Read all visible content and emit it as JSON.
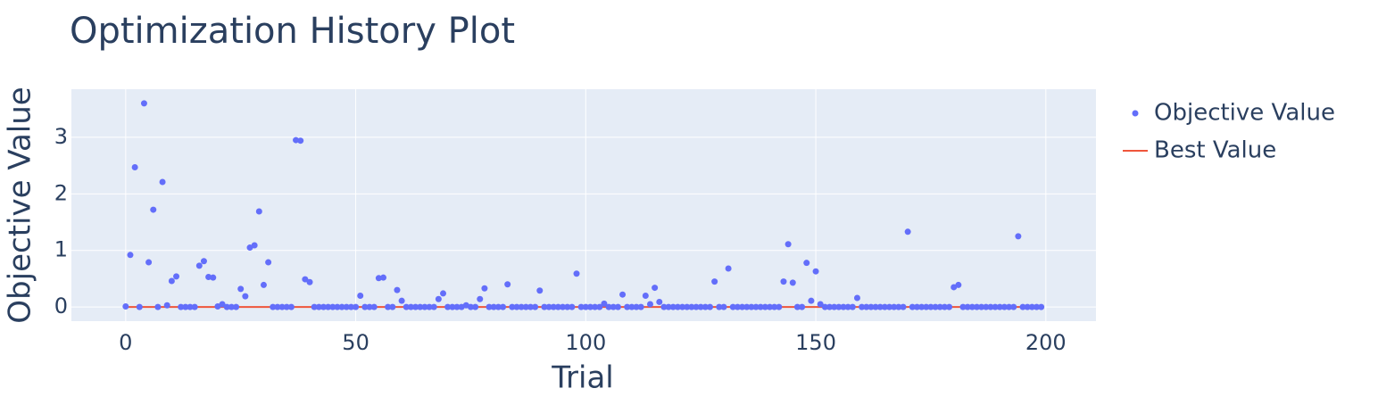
{
  "chart_data": {
    "type": "scatter",
    "title": "Optimization History Plot",
    "x_label": "Trial",
    "y_label": "Objective Value",
    "xlim": [
      -11.8,
      210.9
    ],
    "ylim": [
      -0.25,
      3.85
    ],
    "xticks": [
      0,
      50,
      100,
      150,
      200
    ],
    "yticks": [
      0,
      1,
      2,
      3
    ],
    "grid": true,
    "legend": "right",
    "series": [
      {
        "name": "Objective Value",
        "color": "#636efa",
        "mode": "markers",
        "x": [
          0,
          1,
          2,
          3,
          4,
          5,
          6,
          7,
          8,
          9,
          10,
          11,
          12,
          13,
          14,
          15,
          16,
          17,
          18,
          19,
          20,
          21,
          22,
          23,
          24,
          25,
          26,
          27,
          28,
          29,
          30,
          31,
          32,
          33,
          34,
          35,
          36,
          37,
          38,
          39,
          40,
          41,
          42,
          43,
          44,
          45,
          46,
          47,
          48,
          49,
          50,
          51,
          52,
          53,
          54,
          55,
          56,
          57,
          58,
          59,
          60,
          61,
          62,
          63,
          64,
          65,
          66,
          67,
          68,
          69,
          70,
          71,
          72,
          73,
          74,
          75,
          76,
          77,
          78,
          79,
          80,
          81,
          82,
          83,
          84,
          85,
          86,
          87,
          88,
          89,
          90,
          91,
          92,
          93,
          94,
          95,
          96,
          97,
          98,
          99,
          100,
          101,
          102,
          103,
          104,
          105,
          106,
          107,
          108,
          109,
          110,
          111,
          112,
          113,
          114,
          115,
          116,
          117,
          118,
          119,
          120,
          121,
          122,
          123,
          124,
          125,
          126,
          127,
          128,
          129,
          130,
          131,
          132,
          133,
          134,
          135,
          136,
          137,
          138,
          139,
          140,
          141,
          142,
          143,
          144,
          145,
          146,
          147,
          148,
          149,
          150,
          151,
          152,
          153,
          154,
          155,
          156,
          157,
          158,
          159,
          160,
          161,
          162,
          163,
          164,
          165,
          166,
          167,
          168,
          169,
          170,
          171,
          172,
          173,
          174,
          175,
          176,
          177,
          178,
          179,
          180,
          181,
          182,
          183,
          184,
          185,
          186,
          187,
          188,
          189,
          190,
          191,
          192,
          193,
          194,
          195,
          196,
          197,
          198,
          199
        ],
        "values": [
          0.01,
          0.92,
          2.47,
          0,
          3.6,
          0.79,
          1.72,
          0,
          2.21,
          0.03,
          0.46,
          0.54,
          0,
          0,
          0,
          0,
          0.73,
          0.81,
          0.53,
          0.52,
          0.01,
          0.05,
          0,
          0,
          0,
          0.32,
          0.19,
          1.05,
          1.09,
          1.69,
          0.39,
          0.79,
          0,
          0,
          0,
          0,
          0,
          2.95,
          2.94,
          0.49,
          0.44,
          0,
          0,
          0,
          0,
          0,
          0,
          0,
          0,
          0,
          0,
          0.2,
          0,
          0,
          0,
          0.51,
          0.52,
          0,
          0,
          0.3,
          0.11,
          0,
          0,
          0,
          0,
          0,
          0,
          0,
          0.14,
          0.24,
          0,
          0,
          0,
          0,
          0.03,
          0,
          0,
          0.14,
          0.33,
          0,
          0,
          0,
          0,
          0.4,
          0,
          0,
          0,
          0,
          0,
          0,
          0.29,
          0,
          0,
          0,
          0,
          0,
          0,
          0,
          0.59,
          0,
          0,
          0,
          0,
          0,
          0.06,
          0,
          0,
          0,
          0.22,
          0,
          0,
          0,
          0,
          0.2,
          0.05,
          0.34,
          0.09,
          0,
          0,
          0,
          0,
          0,
          0,
          0,
          0,
          0,
          0,
          0,
          0.45,
          0,
          0,
          0.68,
          0,
          0,
          0,
          0,
          0,
          0,
          0,
          0,
          0,
          0,
          0,
          0.45,
          1.11,
          0.43,
          0,
          0,
          0.78,
          0.11,
          0.63,
          0.05,
          0,
          0,
          0,
          0,
          0,
          0,
          0,
          0.16,
          0,
          0,
          0,
          0,
          0,
          0,
          0,
          0,
          0,
          0,
          1.33,
          0,
          0,
          0,
          0,
          0,
          0,
          0,
          0,
          0,
          0.35,
          0.39,
          0,
          0,
          0,
          0,
          0,
          0,
          0,
          0,
          0,
          0,
          0,
          0,
          1.25,
          0,
          0,
          0,
          0,
          0
        ]
      },
      {
        "name": "Best Value",
        "color": "#ef553b",
        "mode": "lines",
        "x": [
          0,
          199
        ],
        "values": [
          0,
          0
        ]
      }
    ]
  }
}
